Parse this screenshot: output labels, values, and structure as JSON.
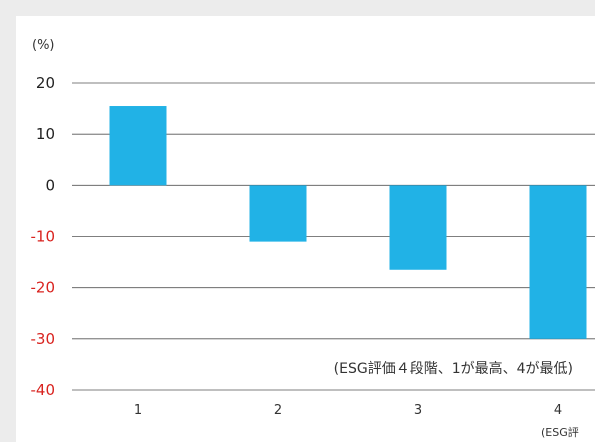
{
  "chart_data": {
    "type": "bar",
    "categories": [
      "1",
      "2",
      "3",
      "4"
    ],
    "values": [
      15.5,
      -11,
      -16.5,
      -30
    ],
    "ylim": [
      -40,
      20
    ],
    "yticks": [
      20,
      10,
      0,
      -10,
      -20,
      -30,
      -40
    ],
    "grid": true,
    "ylabel": "(%)",
    "annotation": "(ESG評価４段階、1が最高、4が最低)",
    "corner_note": "(ESG評"
  },
  "colors": {
    "bar": "#21b2e6",
    "negative_tick": "#d9231f",
    "positive_tick": "#222222",
    "grid": "#555555",
    "background": "#ececec"
  }
}
